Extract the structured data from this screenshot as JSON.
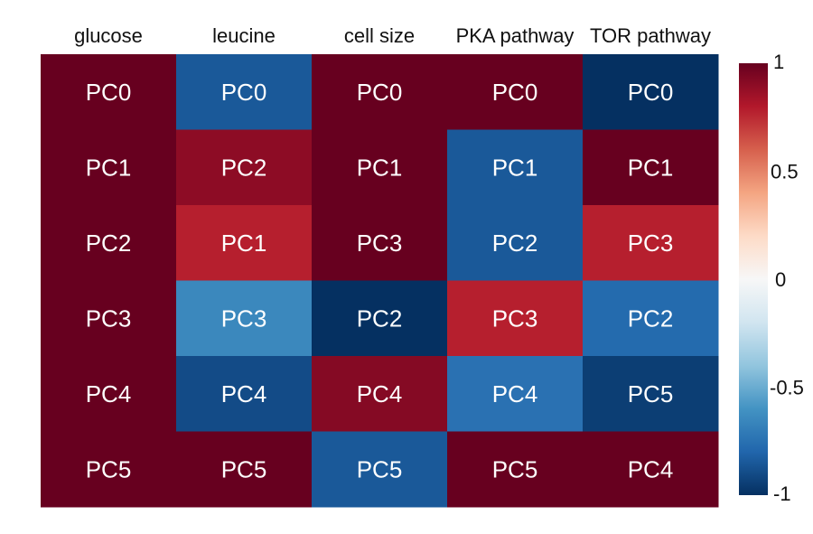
{
  "chart_data": {
    "type": "heatmap",
    "title": "",
    "xlabel": "",
    "ylabel": "",
    "columns": [
      "glucose",
      "leucine",
      "cell size",
      "PKA pathway",
      "TOR pathway"
    ],
    "cells": [
      [
        "PC0",
        "PC0",
        "PC0",
        "PC0",
        "PC0"
      ],
      [
        "PC1",
        "PC2",
        "PC1",
        "PC1",
        "PC1"
      ],
      [
        "PC2",
        "PC1",
        "PC3",
        "PC2",
        "PC3"
      ],
      [
        "PC3",
        "PC3",
        "PC2",
        "PC3",
        "PC2"
      ],
      [
        "PC4",
        "PC4",
        "PC4",
        "PC4",
        "PC5"
      ],
      [
        "PC5",
        "PC5",
        "PC5",
        "PC5",
        "PC4"
      ]
    ],
    "values": [
      [
        1.0,
        -0.85,
        1.0,
        1.0,
        -1.0
      ],
      [
        1.0,
        0.9,
        1.0,
        -0.85,
        1.0
      ],
      [
        1.0,
        0.78,
        1.0,
        -0.85,
        0.78
      ],
      [
        1.0,
        -0.65,
        -1.0,
        0.78,
        -0.78
      ],
      [
        1.0,
        -0.9,
        0.92,
        -0.75,
        -0.95
      ],
      [
        1.0,
        1.0,
        -0.85,
        1.0,
        1.0
      ]
    ],
    "colorbar": {
      "range": [
        -1,
        1
      ],
      "ticks": [
        1,
        0.5,
        0,
        -0.5,
        -1
      ],
      "tick_labels": [
        "1",
        "0.5",
        "0",
        "-0.5",
        "-1"
      ],
      "colormap": "RdBu_r"
    },
    "colors": {
      "neg_extreme": "#053061",
      "neg_mid": "#4393c3",
      "neutral": "#f7f7f7",
      "pos_mid": "#d6604d",
      "pos_extreme": "#67001f"
    }
  }
}
